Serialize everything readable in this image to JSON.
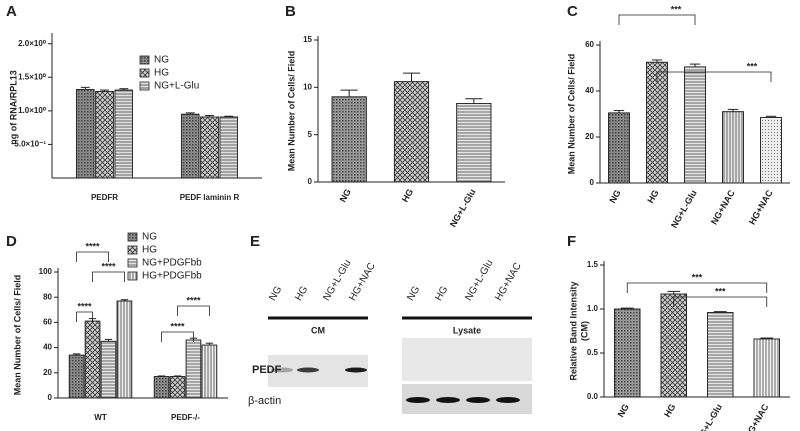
{
  "chart_data": [
    {
      "panel": "A",
      "type": "bar",
      "y_label": "ng of RNA/RPL13",
      "categories": [
        "PEDFR",
        "PEDF laminin R"
      ],
      "series": [
        {
          "name": "NG",
          "color": "#8a8a8a",
          "values": [
            1.32,
            0.95
          ],
          "errors": [
            0.03,
            0.02
          ]
        },
        {
          "name": "HG",
          "color": "#d0d0d0",
          "values": [
            1.29,
            0.91
          ],
          "errors": [
            0.02,
            0.02
          ]
        },
        {
          "name": "NG+L-Glu",
          "color": "#e0e0e0",
          "values": [
            1.31,
            0.91
          ],
          "errors": [
            0.02,
            0.01
          ]
        }
      ],
      "ylim": [
        0,
        2.1
      ],
      "yticks": [
        {
          "value": 0.5,
          "label": "5.0×10⁻¹"
        },
        {
          "value": 1.0,
          "label": "1.0×10⁰"
        },
        {
          "value": 1.5,
          "label": "1.5×10⁰"
        },
        {
          "value": 2.0,
          "label": "2.0×10⁰"
        }
      ],
      "legend": "upper right"
    },
    {
      "panel": "B",
      "type": "bar",
      "y_label": "Mean Number of Cells/ Field",
      "categories": [
        "NG",
        "HG",
        "NG+L-Glu"
      ],
      "values": [
        9.0,
        10.6,
        8.3
      ],
      "errors": [
        0.7,
        0.9,
        0.5
      ],
      "colors": [
        "#9a9a9a",
        "#d0d0d0",
        "#e6e6e6"
      ],
      "ylim": [
        0,
        15
      ],
      "yticks": [
        0,
        5,
        10,
        15
      ]
    },
    {
      "panel": "C",
      "type": "bar",
      "y_label": "Mean Number of Cells/ Field",
      "categories": [
        "NG",
        "HG",
        "NG+L-Glu",
        "NG+NAC",
        "HG+NAC"
      ],
      "values": [
        30.5,
        52.5,
        50.5,
        31,
        28.5
      ],
      "errors": [
        1,
        1,
        1.2,
        1,
        0.5
      ],
      "colors": [
        "#8a8a8a",
        "#d0d0d0",
        "#e6e6e6",
        "#e6e6e6",
        "#eeeeee"
      ],
      "ylim": [
        0,
        60
      ],
      "yticks": [
        0,
        20,
        40,
        60
      ],
      "annotations": [
        "***",
        "***"
      ]
    },
    {
      "panel": "D",
      "type": "bar",
      "y_label": "Mean Number of Cells/ Field",
      "categories": [
        "WT",
        "PEDF-/-"
      ],
      "series": [
        {
          "name": "NG",
          "color": "#8a8a8a",
          "values": [
            34,
            17
          ],
          "errors": [
            1,
            0.5
          ]
        },
        {
          "name": "HG",
          "color": "#d0d0d0",
          "values": [
            61,
            17
          ],
          "errors": [
            2,
            0.5
          ]
        },
        {
          "name": "NG+PDGFbb",
          "color": "#e6e6e6",
          "values": [
            45,
            46
          ],
          "errors": [
            1.5,
            1.5
          ]
        },
        {
          "name": "HG+PDGFbb",
          "color": "#eeeeee",
          "values": [
            77,
            42
          ],
          "errors": [
            1,
            1.5
          ]
        }
      ],
      "ylim": [
        0,
        100
      ],
      "yticks": [
        0,
        20,
        40,
        60,
        80,
        100
      ],
      "legend": "upper right",
      "annotations": [
        "****",
        "****",
        "****",
        "****",
        "****"
      ]
    },
    {
      "panel": "E",
      "type": "blot",
      "lanes": [
        "NG",
        "HG",
        "NG+L-Glu",
        "HG+NAC"
      ],
      "groups": [
        "CM",
        "Lysate"
      ],
      "rows": [
        "PEDF",
        "β-actin"
      ]
    },
    {
      "panel": "F",
      "type": "bar",
      "y_label": [
        "Relative Band Intensity",
        "(CM)"
      ],
      "categories": [
        "NG",
        "HG",
        "NG+L-Glu",
        "HG+NAC"
      ],
      "values": [
        1.0,
        1.17,
        0.96,
        0.66
      ],
      "errors": [
        0.01,
        0.03,
        0.01,
        0.01
      ],
      "colors": [
        "#9a9a9a",
        "#d0d0d0",
        "#e6e6e6",
        "#f2f2f2"
      ],
      "ylim": [
        0,
        1.5
      ],
      "yticks": [
        {
          "value": 0,
          "label": "0.0"
        },
        0.5,
        {
          "value": 1,
          "label": "1.0"
        },
        1.5
      ],
      "annotations": [
        "***",
        "***"
      ]
    }
  ]
}
